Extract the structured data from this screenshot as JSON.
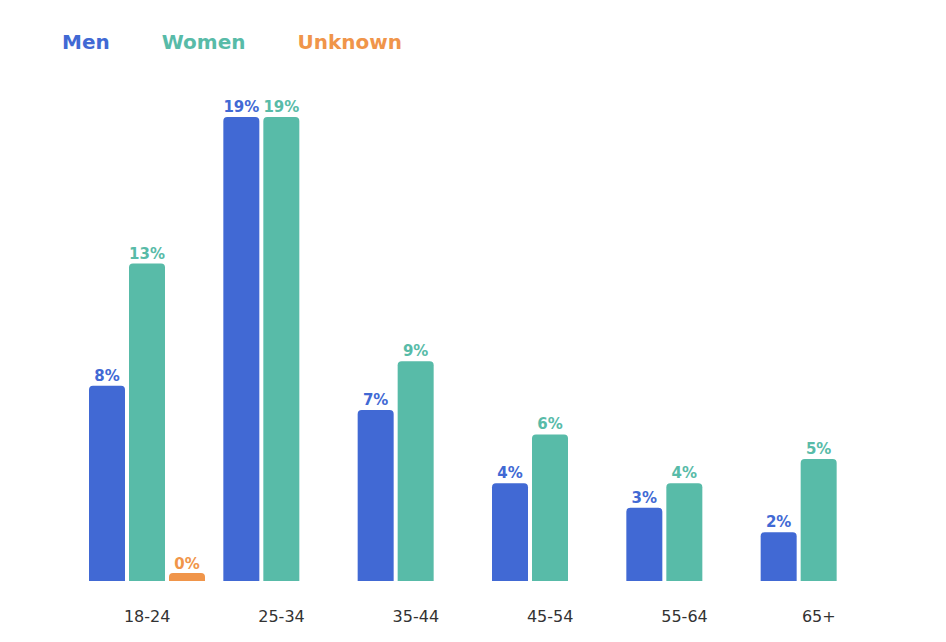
{
  "chart_data": {
    "type": "bar",
    "categories": [
      "18-24",
      "25-34",
      "35-44",
      "45-54",
      "55-64",
      "65+"
    ],
    "series": [
      {
        "name": "Men",
        "color": "#4169d4",
        "values": [
          8,
          19,
          7,
          4,
          3,
          2
        ],
        "value_labels": [
          "8%",
          "19%",
          "7%",
          "4%",
          "3%",
          "2%"
        ]
      },
      {
        "name": "Women",
        "color": "#58bba8",
        "values": [
          13,
          19,
          9,
          6,
          4,
          5
        ],
        "value_labels": [
          "13%",
          "19%",
          "9%",
          "6%",
          "4%",
          "5%"
        ]
      },
      {
        "name": "Unknown",
        "color": "#f0954a",
        "values": [
          0,
          null,
          null,
          null,
          null,
          null
        ],
        "value_labels": [
          "0%",
          null,
          null,
          null,
          null,
          null
        ]
      }
    ],
    "ylim": [
      0,
      19
    ],
    "grid": false,
    "legend": "top-left",
    "data_labels": true,
    "tick_labels": "x"
  }
}
